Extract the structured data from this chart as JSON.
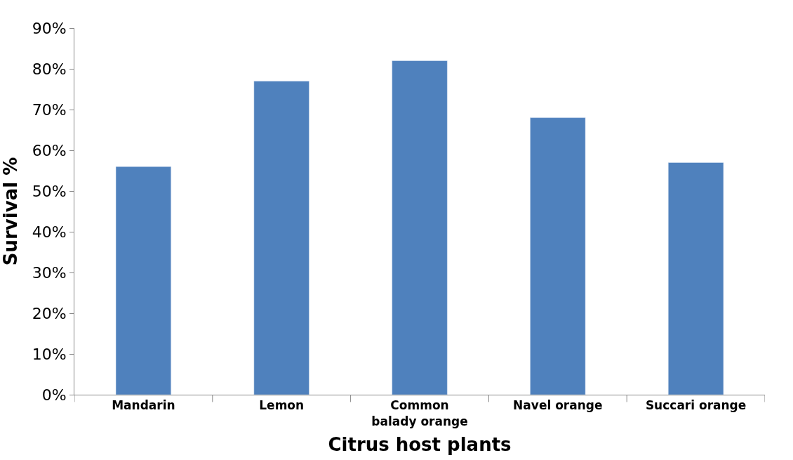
{
  "chart_data": {
    "type": "bar",
    "xlabel": "Citrus host plants",
    "ylabel": "Survival %",
    "categories": [
      "Mandarin",
      "Lemon",
      "Common\nbalady orange",
      "Navel orange",
      "Succari orange"
    ],
    "values": [
      56,
      77,
      82,
      68,
      57
    ],
    "color": "#4f81bd",
    "ylim": [
      0,
      90
    ],
    "yticks": [
      {
        "value": 0,
        "label": "0%"
      },
      {
        "value": 10,
        "label": "10%"
      },
      {
        "value": 20,
        "label": "20%"
      },
      {
        "value": 30,
        "label": "30%"
      },
      {
        "value": 40,
        "label": "40%"
      },
      {
        "value": 50,
        "label": "50%"
      },
      {
        "value": 60,
        "label": "60%"
      },
      {
        "value": 70,
        "label": "70%"
      },
      {
        "value": 80,
        "label": "80%"
      },
      {
        "value": 90,
        "label": "90%"
      }
    ],
    "orientation": "vertical"
  }
}
